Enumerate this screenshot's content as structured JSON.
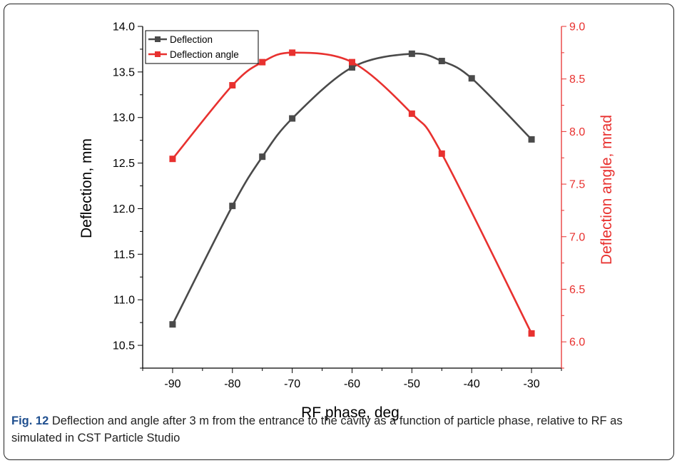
{
  "chart_data": {
    "type": "line",
    "xlabel": "RF phase, deg",
    "ylabel_left": "Deflection, mm",
    "ylabel_right": "Deflection angle, mrad",
    "xlim": [
      -95,
      -25
    ],
    "xticks": [
      -90,
      -80,
      -70,
      -60,
      -50,
      -40,
      -30
    ],
    "ylim_left": [
      10.25,
      14.0
    ],
    "yticks_left": [
      10.5,
      11.0,
      11.5,
      12.0,
      12.5,
      13.0,
      13.5,
      14.0
    ],
    "ylim_right": [
      5.75,
      9.0
    ],
    "yticks_right": [
      6.0,
      6.5,
      7.0,
      7.5,
      8.0,
      8.5,
      9.0
    ],
    "legend_position": "top-left",
    "series": [
      {
        "name": "Deflection",
        "axis": "left",
        "color": "#4a4a4a",
        "x": [
          -90,
          -80,
          -75,
          -70,
          -60,
          -50,
          -45,
          -40,
          -30
        ],
        "y": [
          10.73,
          12.03,
          12.57,
          12.99,
          13.55,
          13.7,
          13.62,
          13.43,
          12.76
        ]
      },
      {
        "name": "Deflection angle",
        "axis": "right",
        "color": "#e8312f",
        "x": [
          -90,
          -80,
          -75,
          -70,
          -60,
          -50,
          -45,
          -30
        ],
        "y": [
          7.74,
          8.44,
          8.66,
          8.75,
          8.66,
          8.17,
          7.79,
          6.08
        ]
      }
    ]
  },
  "caption": {
    "label": "Fig. 12",
    "text": " Deflection and angle after 3 m from the entrance to the cavity as a function of particle phase, relative to RF as simulated in CST Particle Studio"
  }
}
